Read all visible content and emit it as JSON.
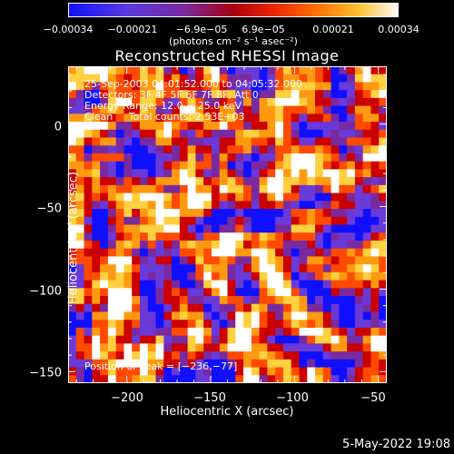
{
  "chart_data": {
    "type": "heatmap",
    "title": "Reconstructed RHESSI Image",
    "xlabel": "Heliocentric X (arcsec)",
    "ylabel": "Heliocentric Y (arcsec)",
    "xlim": [
      -235,
      -45
    ],
    "ylim": [
      -157,
      35
    ],
    "x_ticks": [
      -200,
      -150,
      -100,
      -50
    ],
    "x_tick_labels": [
      "−200",
      "−150",
      "−100",
      "−50"
    ],
    "y_ticks": [
      0,
      -50,
      -100,
      -150
    ],
    "y_tick_labels": [
      "0",
      "−50",
      "−100",
      "−150"
    ],
    "colorbar": {
      "range": [
        -0.00034,
        0.00034
      ],
      "tick_labels": [
        "−0.00034",
        "−0.00021",
        "−6.9e−05",
        "6.9e−05",
        "0.00021",
        "0.00034"
      ],
      "units": "(photons cm⁻² s⁻¹ asec⁻²)",
      "colors": [
        "#1010ff",
        "#6a3ad8",
        "#7a2aa0",
        "#cc0000",
        "#ff4a00",
        "#ff9a10",
        "#ffd040",
        "#ffffff"
      ]
    },
    "annotations": [
      "25-Sep-2003 04:01:52.000 to 04:05:32.000",
      "Detectors: 3F 4F 5F 6F 7F 8F, Att 0",
      "Energy Range: 12.0 − 25.0 keV",
      "Clean     Total counts: 2.53E+03"
    ],
    "peak_label": "Position of Peak = [−236,−77]",
    "peak": [
      -236,
      -77
    ]
  },
  "timestamp": "5-May-2022 19:08"
}
